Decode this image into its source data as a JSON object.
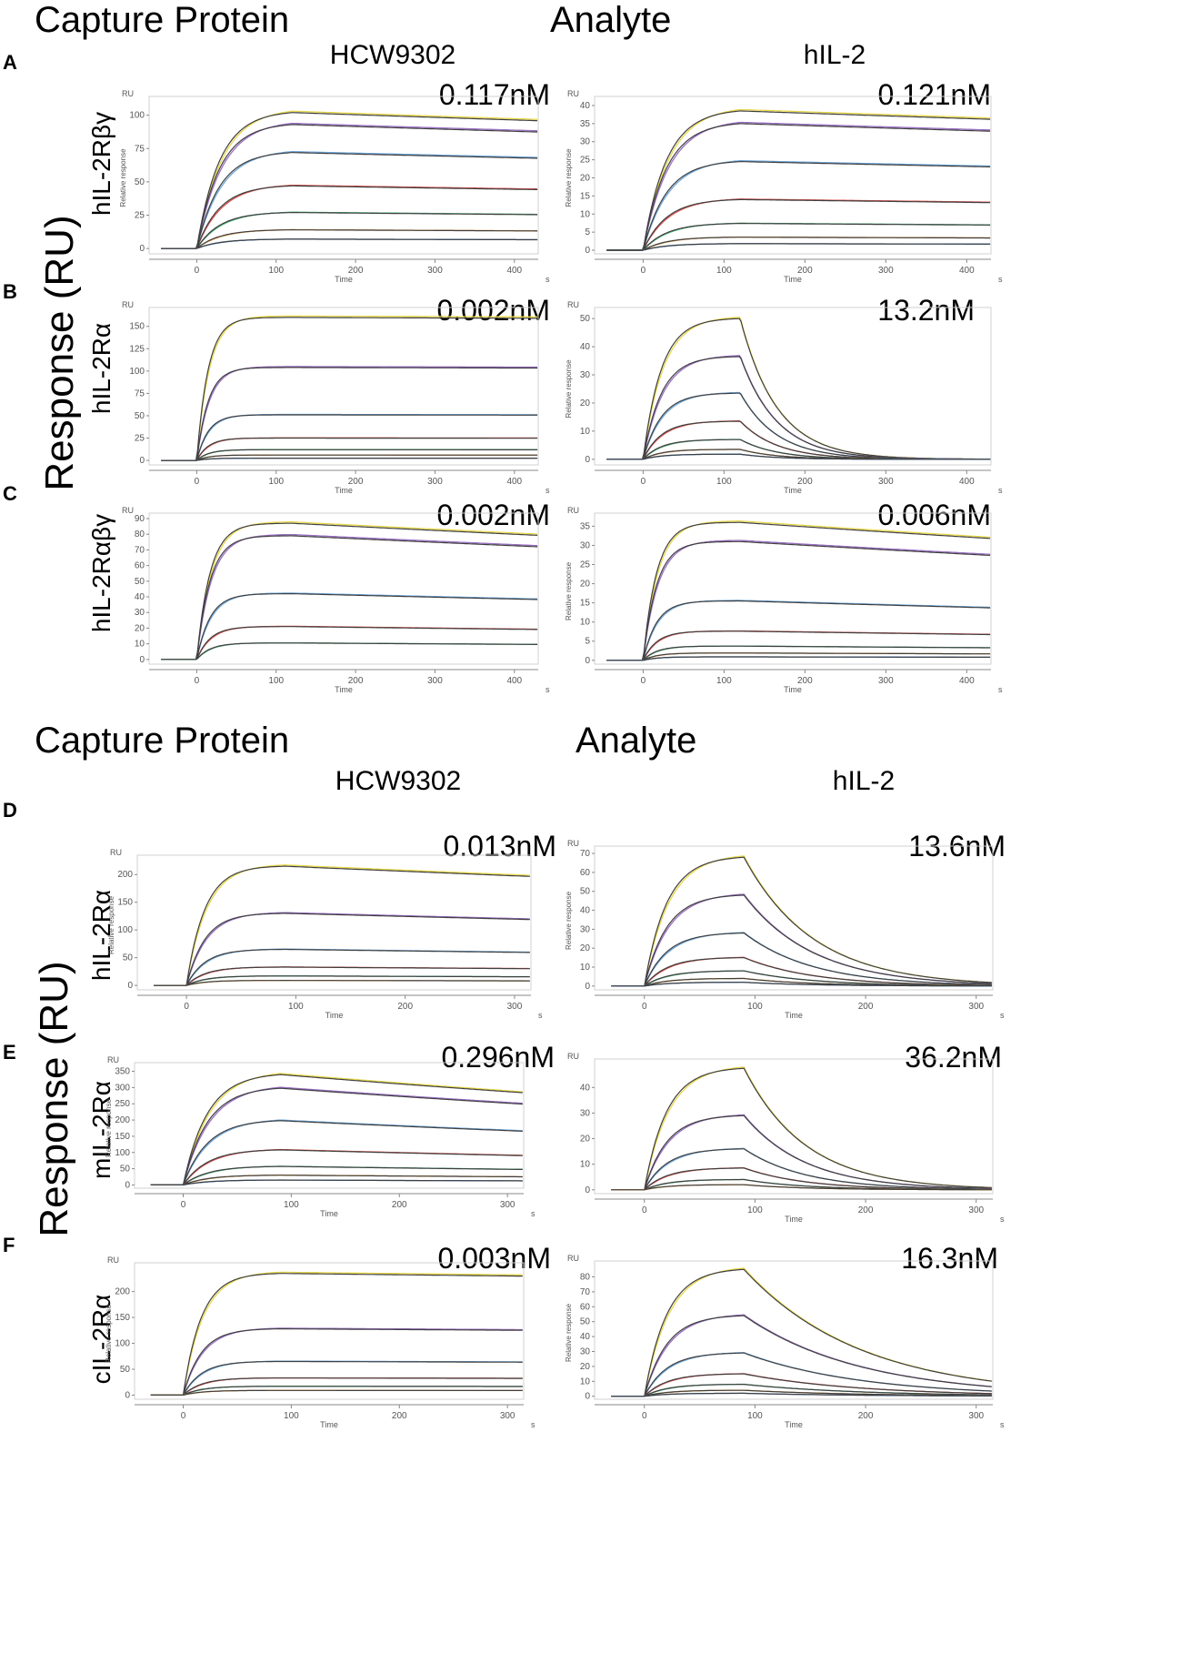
{
  "headers": {
    "top_capture": "Capture Protein",
    "top_analyte": "Analyte",
    "bottom_capture": "Capture Protein",
    "bottom_analyte": "Analyte",
    "col_left_top": "HCW9302",
    "col_right_top": "hIL-2",
    "col_left_bottom": "HCW9302",
    "col_right_bottom": "hIL-2",
    "y_title_top": "Response (RU)",
    "y_title_bottom": "Response (RU)"
  },
  "panels": [
    "A",
    "B",
    "C",
    "D",
    "E",
    "F"
  ],
  "row_labels": [
    "hIL-2Rβγ",
    "hIL-2Rα",
    "hIL-2Rαβγ",
    "hIL-2Rα",
    "mIL-2Rα",
    "cIL-2Rα"
  ],
  "colors": {
    "fit": "#3f3f3f",
    "traces": [
      "#e8d84a",
      "#9a6fc4",
      "#6fa8dc",
      "#d9534f",
      "#4caf7a",
      "#e69a3c",
      "#3d7cc9",
      "#8bc34a"
    ]
  },
  "chart_data": [
    {
      "id": "A-left",
      "type": "line",
      "kd": "0.117nM",
      "xlabel": "Time",
      "xunit": "s",
      "ylabel": "Relative response",
      "yunit": "RU",
      "xticks": [
        0,
        100,
        200,
        300,
        400
      ],
      "yticks": [
        0,
        25,
        50,
        75,
        100
      ],
      "xlim": [
        -60,
        430
      ],
      "ylim": [
        -4,
        110
      ],
      "assoc_end": 120,
      "kon": 0.035,
      "koff": 0.0002,
      "plateaus": [
        102,
        93,
        72,
        47,
        27,
        14,
        7
      ]
    },
    {
      "id": "A-right",
      "type": "line",
      "kd": "0.121nM",
      "xlabel": "Time",
      "xunit": "s",
      "ylabel": "Relative response",
      "yunit": "RU",
      "xticks": [
        0,
        100,
        200,
        300,
        400
      ],
      "yticks": [
        0,
        5,
        10,
        15,
        20,
        25,
        30,
        35,
        40
      ],
      "xlim": [
        -60,
        430
      ],
      "ylim": [
        -1,
        41
      ],
      "assoc_end": 120,
      "kon": 0.035,
      "koff": 0.0002,
      "plateaus": [
        38.5,
        35,
        24.5,
        14,
        7.4,
        3.6,
        1.8
      ]
    },
    {
      "id": "B-left",
      "type": "line",
      "kd": "0.002nM",
      "xlabel": "Time",
      "xunit": "s",
      "ylabel": "",
      "yunit": "RU",
      "xticks": [
        0,
        100,
        200,
        300,
        400
      ],
      "yticks": [
        0,
        25,
        50,
        75,
        100,
        125,
        150
      ],
      "xlim": [
        -60,
        430
      ],
      "ylim": [
        -5,
        165
      ],
      "assoc_end": 120,
      "kon": 0.07,
      "koff": 2e-05,
      "plateaus": [
        160,
        104,
        51,
        25,
        12,
        6,
        2.5
      ]
    },
    {
      "id": "B-right",
      "type": "line",
      "kd": "13.2nM",
      "xlabel": "Time",
      "xunit": "s",
      "ylabel": "Relative response",
      "yunit": "RU",
      "xticks": [
        0,
        100,
        200,
        300,
        400
      ],
      "yticks": [
        0,
        10,
        20,
        30,
        40,
        50
      ],
      "xlim": [
        -60,
        430
      ],
      "ylim": [
        -2,
        52
      ],
      "assoc_end": 120,
      "kon": 0.045,
      "koff": 0.022,
      "plateaus": [
        50,
        36.5,
        23.5,
        13.5,
        7,
        3.5,
        1.8
      ]
    },
    {
      "id": "C-left",
      "type": "line",
      "kd": "0.002nM",
      "xlabel": "Time",
      "xunit": "s",
      "ylabel": "",
      "yunit": "RU",
      "xticks": [
        0,
        100,
        200,
        300,
        400
      ],
      "yticks": [
        0,
        10,
        20,
        30,
        40,
        50,
        60,
        70,
        80,
        90
      ],
      "xlim": [
        -60,
        430
      ],
      "ylim": [
        -3,
        90
      ],
      "assoc_end": 120,
      "kon": 0.06,
      "koff": 0.0003,
      "plateaus": [
        87,
        79,
        42,
        21,
        10.5
      ]
    },
    {
      "id": "C-right",
      "type": "line",
      "kd": "0.006nM",
      "xlabel": "Time",
      "xunit": "s",
      "ylabel": "Relative response",
      "yunit": "RU",
      "xticks": [
        0,
        100,
        200,
        300,
        400
      ],
      "yticks": [
        0,
        5,
        10,
        15,
        20,
        25,
        30,
        35
      ],
      "xlim": [
        -60,
        430
      ],
      "ylim": [
        -1,
        37
      ],
      "assoc_end": 120,
      "kon": 0.06,
      "koff": 0.0004,
      "plateaus": [
        36,
        31,
        15.5,
        7.6,
        3.7,
        1.9,
        0.9
      ]
    },
    {
      "id": "D-left",
      "type": "line",
      "kd": "0.013nM",
      "xlabel": "Time",
      "xunit": "s",
      "ylabel": "Relative response",
      "yunit": "RU",
      "xticks": [
        0,
        100,
        200,
        300
      ],
      "yticks": [
        0,
        50,
        100,
        150,
        200
      ],
      "xlim": [
        -45,
        315
      ],
      "ylim": [
        -8,
        225
      ],
      "assoc_end": 90,
      "kon": 0.06,
      "koff": 0.0004,
      "plateaus": [
        215,
        130,
        65,
        33,
        17,
        9
      ]
    },
    {
      "id": "D-right",
      "type": "line",
      "kd": "13.6nM",
      "xlabel": "Time",
      "xunit": "s",
      "ylabel": "Relative response",
      "yunit": "RU",
      "xticks": [
        0,
        100,
        200,
        300
      ],
      "yticks": [
        0,
        10,
        20,
        30,
        40,
        50,
        60,
        70
      ],
      "xlim": [
        -45,
        315
      ],
      "ylim": [
        -2,
        71
      ],
      "assoc_end": 90,
      "kon": 0.05,
      "koff": 0.016,
      "plateaus": [
        68,
        48,
        28,
        15,
        8,
        4,
        2
      ]
    },
    {
      "id": "E-left",
      "type": "line",
      "kd": "0.296nM",
      "xlabel": "Time",
      "xunit": "s",
      "ylabel": "Relative response",
      "yunit": "RU",
      "xticks": [
        0,
        100,
        200,
        300
      ],
      "yticks": [
        0,
        50,
        100,
        150,
        200,
        250,
        300,
        350
      ],
      "xlim": [
        -45,
        315
      ],
      "ylim": [
        -10,
        360
      ],
      "assoc_end": 90,
      "kon": 0.045,
      "koff": 0.0008,
      "plateaus": [
        340,
        298,
        198,
        108,
        57,
        30,
        15
      ]
    },
    {
      "id": "E-right",
      "type": "line",
      "kd": "36.2nM",
      "xlabel": "Time",
      "xunit": "s",
      "ylabel": "",
      "yunit": "RU",
      "xticks": [
        0,
        100,
        200,
        300
      ],
      "yticks": [
        0,
        10,
        20,
        30,
        40
      ],
      "xlim": [
        -45,
        315
      ],
      "ylim": [
        -1.5,
        49
      ],
      "assoc_end": 90,
      "kon": 0.05,
      "koff": 0.018,
      "plateaus": [
        47.5,
        29,
        16,
        8.5,
        4,
        2
      ]
    },
    {
      "id": "F-left",
      "type": "line",
      "kd": "0.003nM",
      "xlabel": "Time",
      "xunit": "s",
      "ylabel": "Relative response",
      "yunit": "RU",
      "xticks": [
        0,
        100,
        200,
        300
      ],
      "yticks": [
        0,
        50,
        100,
        150,
        200
      ],
      "xlim": [
        -45,
        315
      ],
      "ylim": [
        -8,
        245
      ],
      "assoc_end": 90,
      "kon": 0.06,
      "koff": 0.0001,
      "plateaus": [
        235,
        128,
        65,
        33,
        17,
        9
      ]
    },
    {
      "id": "F-right",
      "type": "line",
      "kd": "16.3nM",
      "xlabel": "Time",
      "xunit": "s",
      "ylabel": "Relative response",
      "yunit": "RU",
      "xticks": [
        0,
        100,
        200,
        300
      ],
      "yticks": [
        0,
        10,
        20,
        30,
        40,
        50,
        60,
        70,
        80
      ],
      "xlim": [
        -45,
        315
      ],
      "ylim": [
        -2,
        87
      ],
      "assoc_end": 90,
      "kon": 0.05,
      "koff": 0.0095,
      "plateaus": [
        85,
        54,
        29,
        15,
        8,
        4,
        2
      ]
    }
  ]
}
